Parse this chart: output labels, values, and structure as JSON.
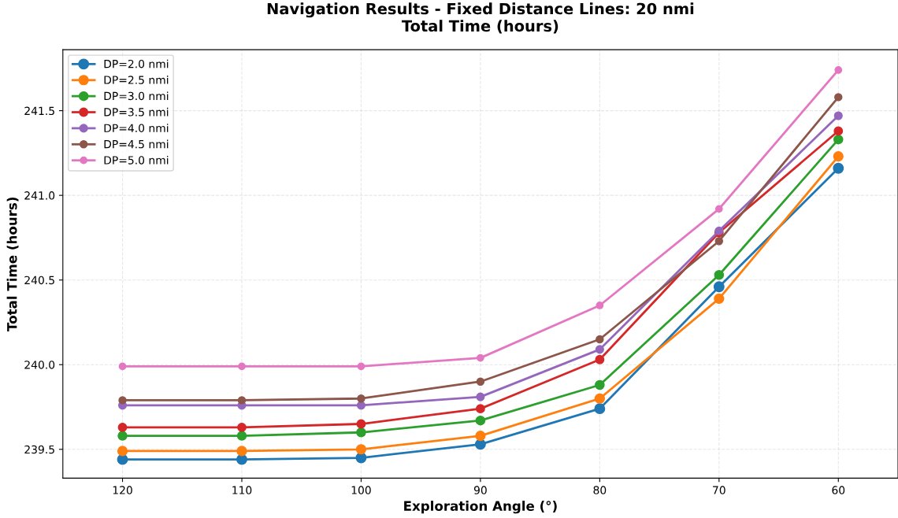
{
  "chart_data": {
    "type": "line",
    "title": "Navigation Results - Fixed Distance Lines: 20 nmi\nTotal Time (hours)",
    "xlabel": "Exploration Angle (°)",
    "ylabel": "Total Time (hours)",
    "x": [
      120,
      110,
      100,
      90,
      80,
      70,
      60
    ],
    "xlim": [
      125,
      55
    ],
    "xticks": [
      120,
      110,
      100,
      90,
      80,
      70,
      60
    ],
    "ylim": [
      239.33,
      241.86
    ],
    "yticks": [
      239.5,
      {
        "value": 240,
        "label": "240.0"
      },
      240.5,
      {
        "value": 241,
        "label": "241.0"
      },
      241.5
    ],
    "grid": true,
    "legend": "top left",
    "marker": "circle",
    "line_style": "solid",
    "series": [
      {
        "name": "DP=2.0 nmi",
        "color": "#1f77b4",
        "values": [
          239.44,
          239.44,
          239.45,
          239.53,
          239.74,
          240.46,
          241.16
        ]
      },
      {
        "name": "DP=2.5 nmi",
        "color": "#ff7f0e",
        "values": [
          239.49,
          239.49,
          239.5,
          239.58,
          239.8,
          240.39,
          241.23
        ]
      },
      {
        "name": "DP=3.0 nmi",
        "color": "#2ca02c",
        "values": [
          239.58,
          239.58,
          239.6,
          239.67,
          239.88,
          240.53,
          241.33
        ]
      },
      {
        "name": "DP=3.5 nmi",
        "color": "#d62728",
        "values": [
          239.63,
          239.63,
          239.65,
          239.74,
          240.03,
          240.78,
          241.38
        ]
      },
      {
        "name": "DP=4.0 nmi",
        "color": "#9467bd",
        "values": [
          239.76,
          239.76,
          239.76,
          239.81,
          240.09,
          240.79,
          241.47
        ]
      },
      {
        "name": "DP=4.5 nmi",
        "color": "#8c564b",
        "values": [
          239.79,
          239.79,
          239.8,
          239.9,
          240.15,
          240.73,
          241.58
        ]
      },
      {
        "name": "DP=5.0 nmi",
        "color": "#e377c2",
        "values": [
          239.99,
          239.99,
          239.99,
          240.04,
          240.35,
          240.92,
          241.74
        ]
      }
    ]
  }
}
